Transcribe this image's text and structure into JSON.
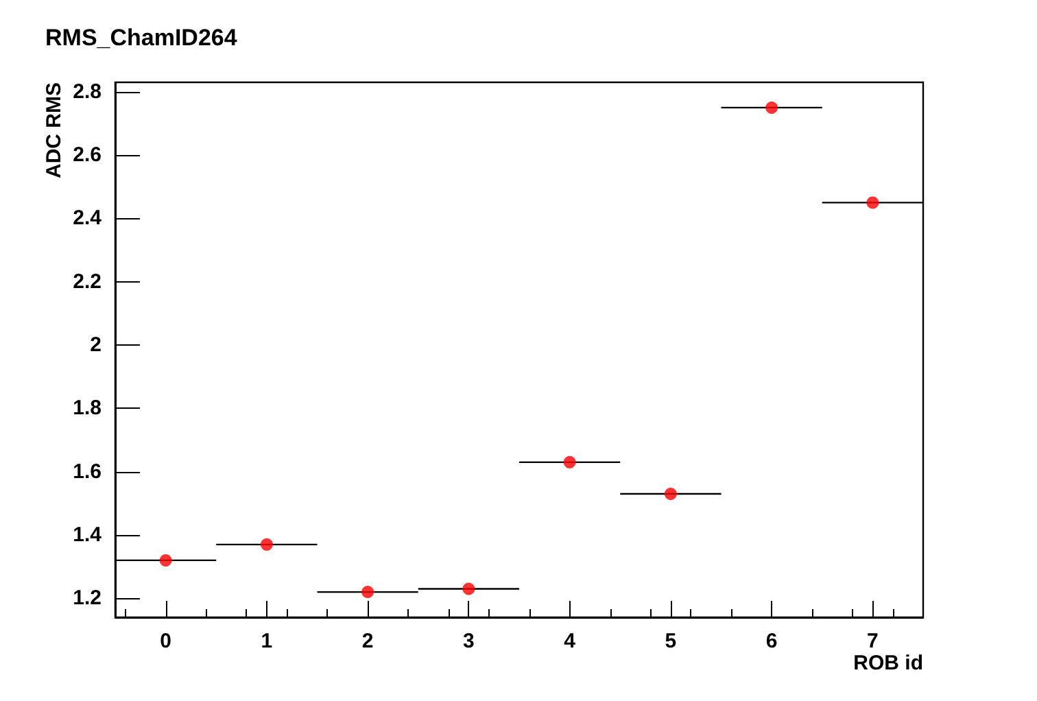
{
  "chart_data": {
    "type": "scatter",
    "title": "RMS_ChamID264",
    "xlabel": "ROB id",
    "ylabel": "ADC RMS",
    "x": [
      0,
      1,
      2,
      3,
      4,
      5,
      6,
      7
    ],
    "values": [
      1.32,
      1.37,
      1.22,
      1.23,
      1.63,
      1.53,
      2.75,
      2.45
    ],
    "xerrors": [
      0.5,
      0.5,
      0.5,
      0.5,
      0.5,
      0.5,
      0.5,
      0.5
    ],
    "color": "#ff0000",
    "marker": "circle",
    "grid": false,
    "xlim": [
      -0.5,
      7.5
    ],
    "xticks": [
      0,
      1,
      2,
      3,
      4,
      5,
      6,
      7
    ],
    "ylim": [
      1.14,
      2.83
    ],
    "yticks": [
      1.2,
      1.4,
      1.6,
      1.8,
      2,
      2.2,
      2.4,
      2.6,
      2.8
    ]
  }
}
